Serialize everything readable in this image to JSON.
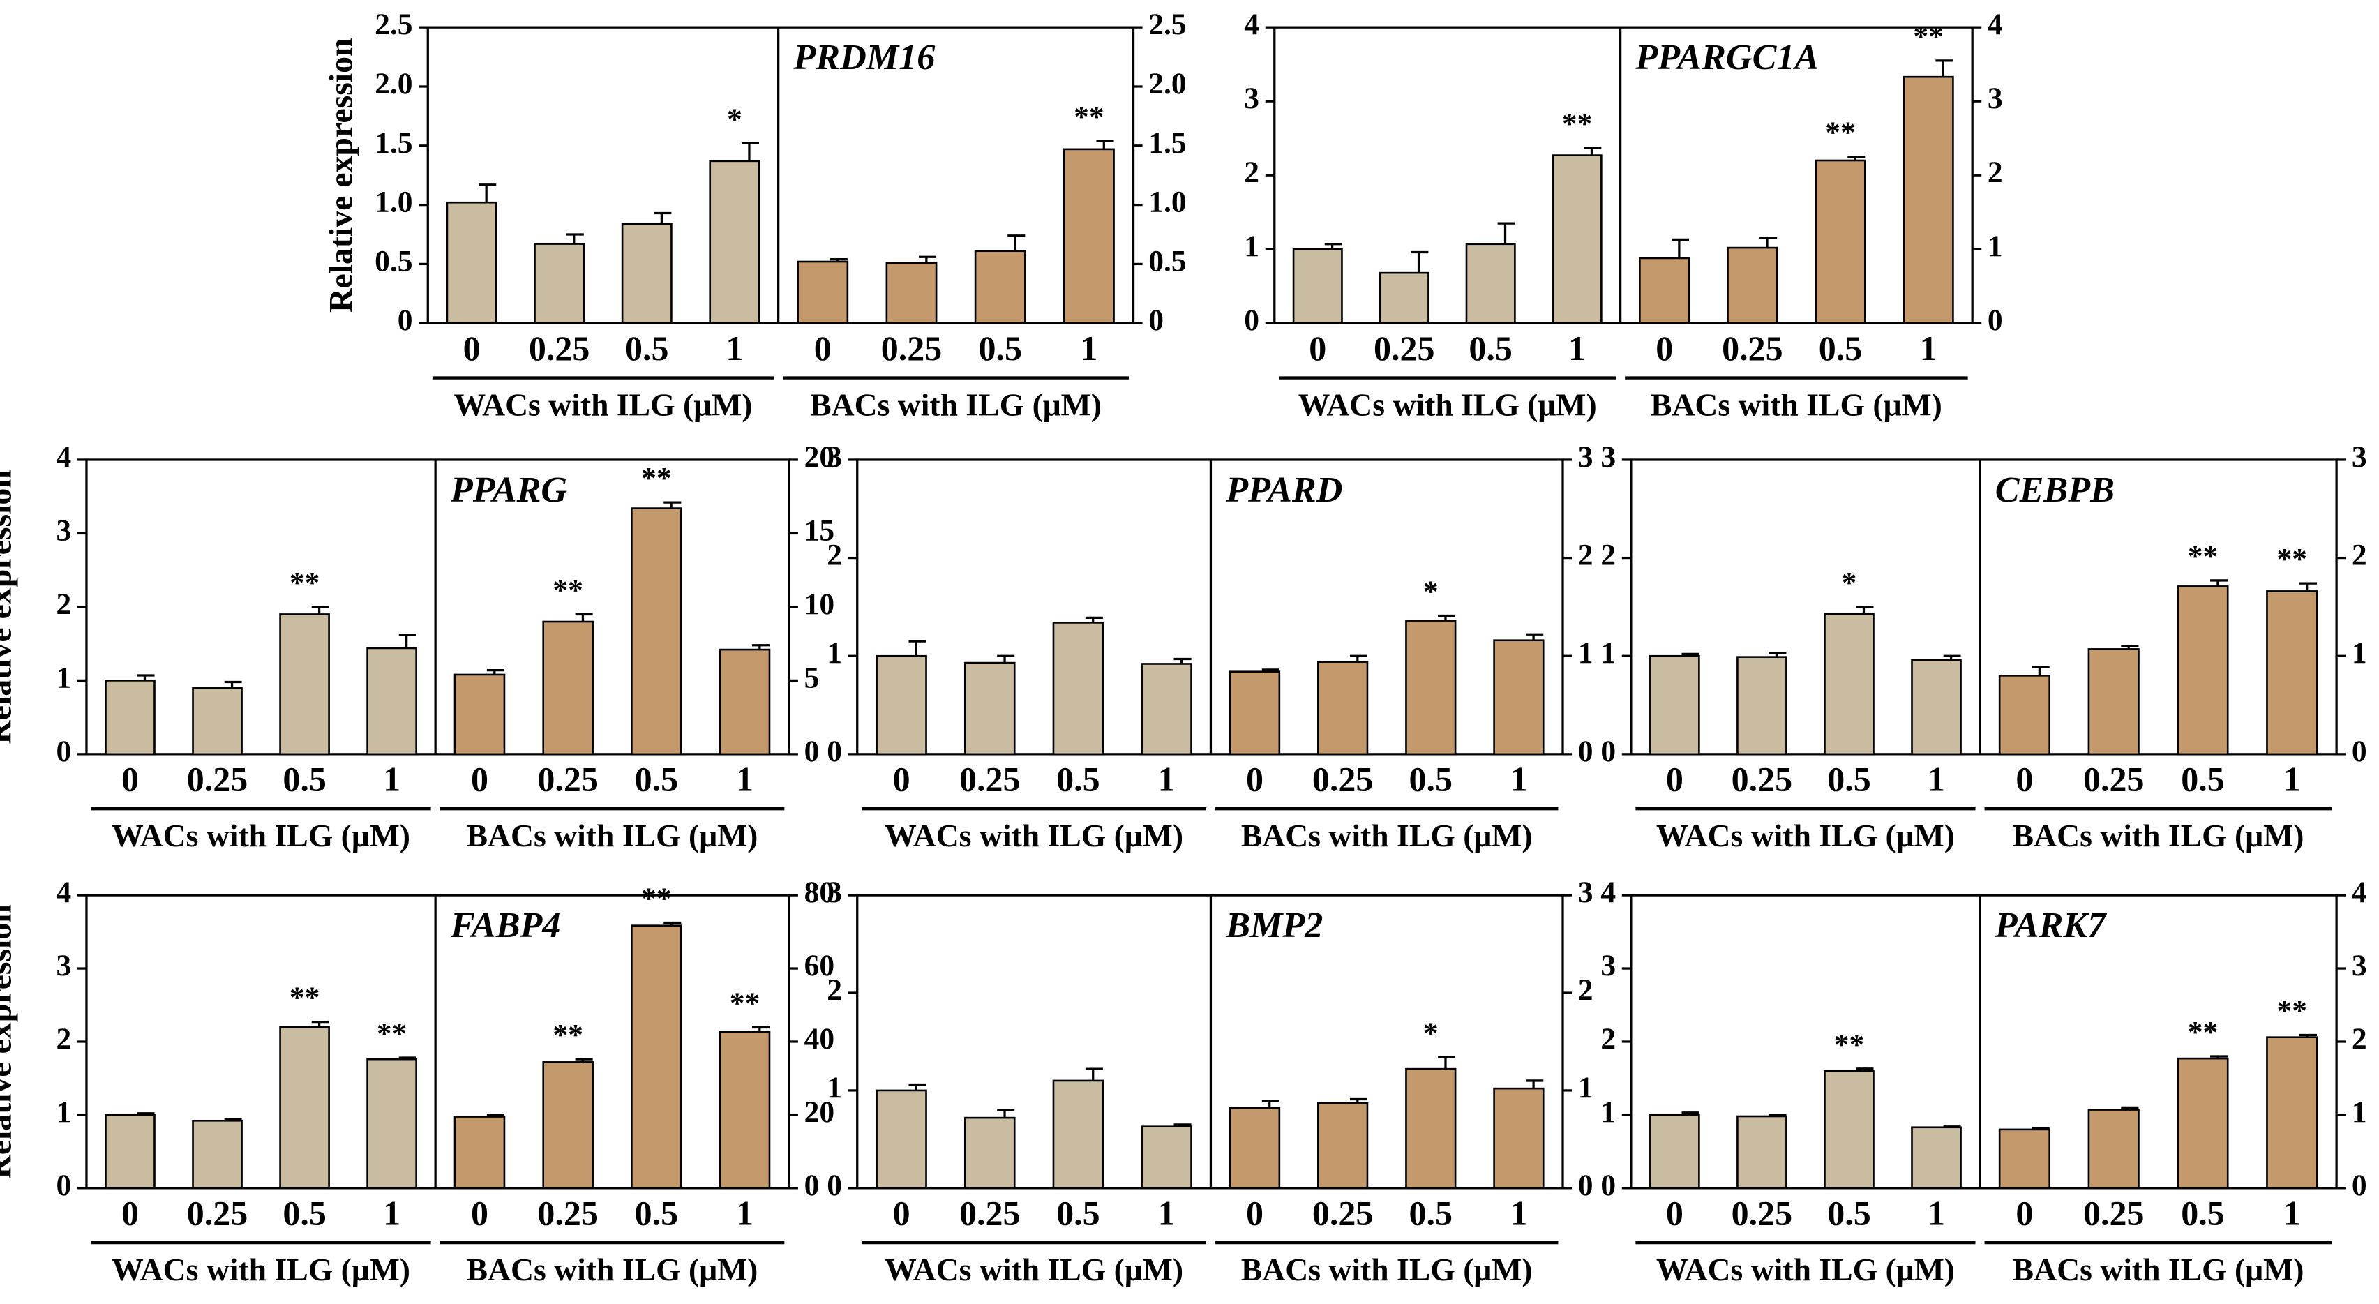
{
  "chart_data": [
    {
      "type": "bar",
      "title": "PRDM16",
      "ylabel": "Relative expression",
      "categories": [
        "0",
        "0.25",
        "0.5",
        "1"
      ],
      "ylim": [
        0,
        2.5
      ],
      "yticks": [
        0,
        0.5,
        {
          "value": 1,
          "label": "1.0"
        },
        1.5,
        {
          "value": 2,
          "label": "2.0"
        },
        2.5
      ],
      "y2lim": [
        0,
        2.5
      ],
      "y2ticks": [
        0,
        0.5,
        {
          "value": 1,
          "label": "1.0"
        },
        1.5,
        {
          "value": 2,
          "label": "2.0"
        },
        2.5
      ],
      "series": [
        {
          "name": "WACs with ILG (μM)",
          "color": "#c9bca0",
          "values": [
            1.02,
            0.67,
            0.84,
            1.37
          ],
          "errors": [
            0.15,
            0.08,
            0.09,
            0.15
          ],
          "annotations": [
            null,
            null,
            null,
            "*"
          ]
        },
        {
          "name": "BACs with ILG (μM)",
          "color": "#c49a6c",
          "axis": "y2",
          "values": [
            0.52,
            0.51,
            0.61,
            1.47
          ],
          "errors": [
            0.02,
            0.05,
            0.13,
            0.07
          ],
          "annotations": [
            null,
            null,
            null,
            "**"
          ]
        }
      ]
    },
    {
      "type": "bar",
      "title": "PPARGC1A",
      "categories": [
        "0",
        "0.25",
        "0.5",
        "1"
      ],
      "ylim": [
        0,
        4
      ],
      "yticks": [
        0,
        1,
        2,
        3,
        4
      ],
      "y2lim": [
        0,
        4
      ],
      "y2ticks": [
        0,
        1,
        2,
        3,
        4
      ],
      "series": [
        {
          "name": "WACs with ILG (μM)",
          "color": "#c9bca0",
          "values": [
            1.0,
            0.68,
            1.07,
            2.27
          ],
          "errors": [
            0.07,
            0.28,
            0.28,
            0.1
          ],
          "annotations": [
            null,
            null,
            null,
            "**"
          ]
        },
        {
          "name": "BACs with ILG (μM)",
          "color": "#c49a6c",
          "axis": "y2",
          "values": [
            0.88,
            1.02,
            2.2,
            3.33
          ],
          "errors": [
            0.25,
            0.13,
            0.05,
            0.22
          ],
          "annotations": [
            null,
            null,
            "**",
            "**"
          ]
        }
      ]
    },
    {
      "type": "bar",
      "title": "PPARG",
      "ylabel": "Relative expression",
      "categories": [
        "0",
        "0.25",
        "0.5",
        "1"
      ],
      "ylim": [
        0,
        4
      ],
      "yticks": [
        0,
        1,
        2,
        3,
        4
      ],
      "y2lim": [
        0,
        20
      ],
      "y2ticks": [
        0,
        5,
        10,
        15,
        20
      ],
      "series": [
        {
          "name": "WACs with ILG (μM)",
          "color": "#c9bca0",
          "values": [
            1.0,
            0.9,
            1.9,
            1.44
          ],
          "errors": [
            0.07,
            0.08,
            0.1,
            0.18
          ],
          "annotations": [
            null,
            null,
            "**",
            null
          ]
        },
        {
          "name": "BACs with ILG (μM)",
          "color": "#c49a6c",
          "axis": "y2",
          "values": [
            5.4,
            9.0,
            16.7,
            7.1
          ],
          "errors": [
            0.3,
            0.5,
            0.4,
            0.3
          ],
          "annotations": [
            null,
            "**",
            "**",
            null
          ]
        }
      ]
    },
    {
      "type": "bar",
      "title": "PPARD",
      "categories": [
        "0",
        "0.25",
        "0.5",
        "1"
      ],
      "ylim": [
        0,
        3
      ],
      "yticks": [
        0,
        1,
        2,
        3
      ],
      "y2lim": [
        0,
        3
      ],
      "y2ticks": [
        0,
        1,
        2,
        3
      ],
      "series": [
        {
          "name": "WACs with ILG (μM)",
          "color": "#c9bca0",
          "values": [
            1.0,
            0.93,
            1.34,
            0.92
          ],
          "errors": [
            0.15,
            0.07,
            0.05,
            0.05
          ],
          "annotations": [
            null,
            null,
            null,
            null
          ]
        },
        {
          "name": "BACs with ILG (μM)",
          "color": "#c49a6c",
          "axis": "y2",
          "values": [
            0.84,
            0.94,
            1.36,
            1.16
          ],
          "errors": [
            0.02,
            0.06,
            0.05,
            0.06
          ],
          "annotations": [
            null,
            null,
            "*",
            null
          ]
        }
      ]
    },
    {
      "type": "bar",
      "title": "CEBPB",
      "categories": [
        "0",
        "0.25",
        "0.5",
        "1"
      ],
      "ylim": [
        0,
        3
      ],
      "yticks": [
        0,
        1,
        2,
        3
      ],
      "y2lim": [
        0,
        3
      ],
      "y2ticks": [
        0,
        1,
        2,
        3
      ],
      "series": [
        {
          "name": "WACs with ILG (μM)",
          "color": "#c9bca0",
          "values": [
            1.0,
            0.99,
            1.43,
            0.96
          ],
          "errors": [
            0.02,
            0.04,
            0.07,
            0.04
          ],
          "annotations": [
            null,
            null,
            "*",
            null
          ]
        },
        {
          "name": "BACs with ILG (μM)",
          "color": "#c49a6c",
          "axis": "y2",
          "values": [
            0.8,
            1.07,
            1.71,
            1.66
          ],
          "errors": [
            0.09,
            0.03,
            0.06,
            0.08
          ],
          "annotations": [
            null,
            null,
            "**",
            "**"
          ]
        }
      ]
    },
    {
      "type": "bar",
      "title": "FABP4",
      "ylabel": "Relative expression",
      "categories": [
        "0",
        "0.25",
        "0.5",
        "1"
      ],
      "ylim": [
        0,
        4
      ],
      "yticks": [
        0,
        1,
        2,
        3,
        4
      ],
      "y2lim": [
        0,
        80
      ],
      "y2ticks": [
        0,
        20,
        40,
        60,
        80
      ],
      "series": [
        {
          "name": "WACs with ILG (μM)",
          "color": "#c9bca0",
          "values": [
            1.0,
            0.92,
            2.2,
            1.76
          ],
          "errors": [
            0.02,
            0.02,
            0.07,
            0.02
          ],
          "annotations": [
            null,
            null,
            "**",
            "**"
          ]
        },
        {
          "name": "BACs with ILG (μM)",
          "color": "#c49a6c",
          "axis": "y2",
          "values": [
            19.5,
            34.4,
            71.7,
            42.7
          ],
          "errors": [
            0.5,
            0.8,
            0.8,
            1.2
          ],
          "annotations": [
            null,
            "**",
            "**",
            "**"
          ]
        }
      ]
    },
    {
      "type": "bar",
      "title": "BMP2",
      "categories": [
        "0",
        "0.25",
        "0.5",
        "1"
      ],
      "ylim": [
        0,
        3
      ],
      "yticks": [
        0,
        1,
        2,
        3
      ],
      "y2lim": [
        0,
        3
      ],
      "y2ticks": [
        0,
        1,
        2,
        3
      ],
      "series": [
        {
          "name": "WACs with ILG (μM)",
          "color": "#c9bca0",
          "values": [
            1.0,
            0.72,
            1.1,
            0.63
          ],
          "errors": [
            0.06,
            0.08,
            0.12,
            0.02
          ],
          "annotations": [
            null,
            null,
            null,
            null
          ]
        },
        {
          "name": "BACs with ILG (μM)",
          "color": "#c49a6c",
          "axis": "y2",
          "values": [
            0.82,
            0.87,
            1.22,
            1.02
          ],
          "errors": [
            0.07,
            0.04,
            0.12,
            0.08
          ],
          "annotations": [
            null,
            null,
            "*",
            null
          ]
        }
      ]
    },
    {
      "type": "bar",
      "title": "PARK7",
      "categories": [
        "0",
        "0.25",
        "0.5",
        "1"
      ],
      "ylim": [
        0,
        4
      ],
      "yticks": [
        0,
        1,
        2,
        3,
        4
      ],
      "y2lim": [
        0,
        4
      ],
      "y2ticks": [
        0,
        1,
        2,
        3,
        4
      ],
      "series": [
        {
          "name": "WACs with ILG (μM)",
          "color": "#c9bca0",
          "values": [
            1.0,
            0.98,
            1.6,
            0.83
          ],
          "errors": [
            0.03,
            0.02,
            0.03,
            0.01
          ],
          "annotations": [
            null,
            null,
            "**",
            null
          ]
        },
        {
          "name": "BACs with ILG (μM)",
          "color": "#c49a6c",
          "axis": "y2",
          "values": [
            0.8,
            1.07,
            1.77,
            2.06
          ],
          "errors": [
            0.02,
            0.03,
            0.03,
            0.03
          ],
          "annotations": [
            null,
            null,
            "**",
            "**"
          ]
        }
      ]
    }
  ]
}
